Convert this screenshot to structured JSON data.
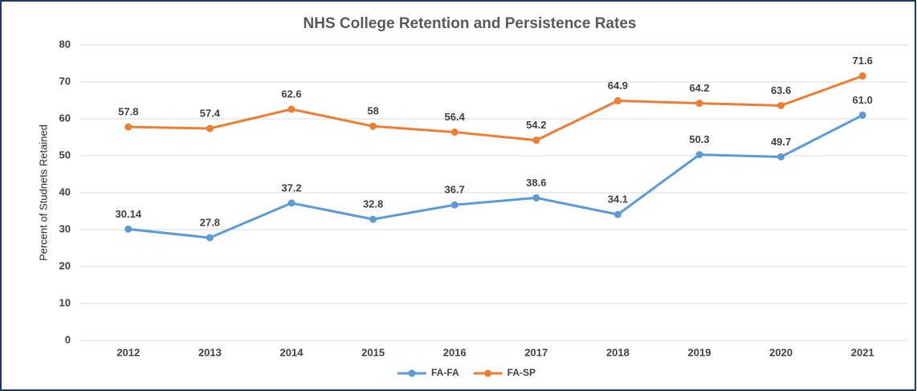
{
  "chart_data": {
    "type": "line",
    "title": "NHS College Retention and Persistence Rates",
    "y_label": "Percent of Studnets Retained",
    "categories": [
      "2012",
      "2013",
      "2014",
      "2015",
      "2016",
      "2017",
      "2018",
      "2019",
      "2020",
      "2021"
    ],
    "series": [
      {
        "name": "FA-FA",
        "color": "#5b9bd5",
        "values": [
          30.14,
          27.8,
          37.2,
          32.8,
          36.7,
          38.6,
          34.1,
          50.3,
          49.7,
          61.0
        ],
        "value_labels": [
          "30.14",
          "27.8",
          "37.2",
          "32.8",
          "36.7",
          "38.6",
          "34.1",
          "50.3",
          "49.7",
          "61.0"
        ]
      },
      {
        "name": "FA-SP",
        "color": "#ed7d31",
        "values": [
          57.8,
          57.4,
          62.6,
          58,
          56.4,
          54.2,
          64.9,
          64.2,
          63.6,
          71.6
        ],
        "value_labels": [
          "57.8",
          "57.4",
          "62.6",
          "58",
          "56.4",
          "54.2",
          "64.9",
          "64.2",
          "63.6",
          "71.6"
        ]
      }
    ],
    "ylim": [
      0,
      80
    ],
    "yticks": [
      0,
      10,
      20,
      30,
      40,
      50,
      60,
      70,
      80
    ],
    "grid": true,
    "legend": "bottom"
  }
}
